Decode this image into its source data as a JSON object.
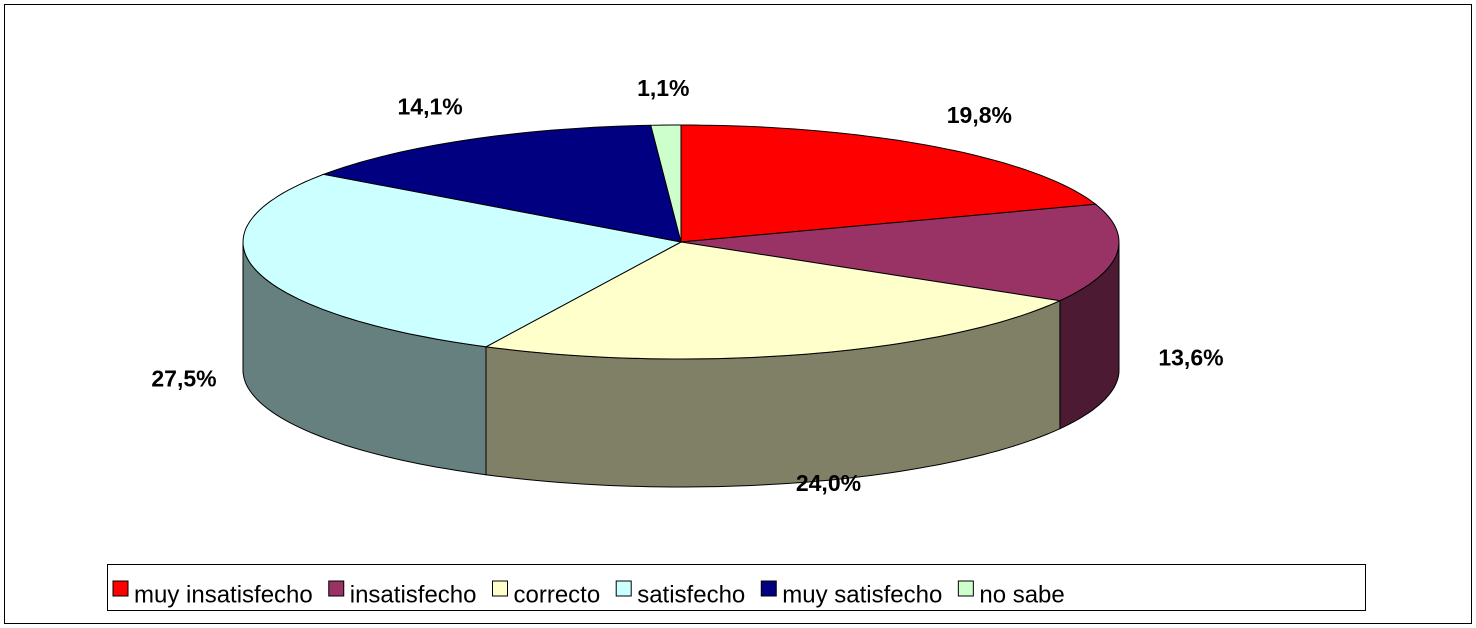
{
  "chart_data": {
    "type": "pie3d",
    "categories": [
      "muy insatisfecho",
      "insatisfecho",
      "correcto",
      "satisfecho",
      "muy satisfecho",
      "no sabe"
    ],
    "values": [
      19.8,
      13.6,
      24.0,
      27.5,
      14.1,
      1.1
    ],
    "value_labels": [
      "19,8%",
      "13,6%",
      "24,0%",
      "27,5%",
      "14,1%",
      "1,1%"
    ],
    "colors": [
      "#ff0000",
      "#993366",
      "#ffffcc",
      "#ccffff",
      "#000080",
      "#ccffcc"
    ],
    "legend": "bottom"
  }
}
